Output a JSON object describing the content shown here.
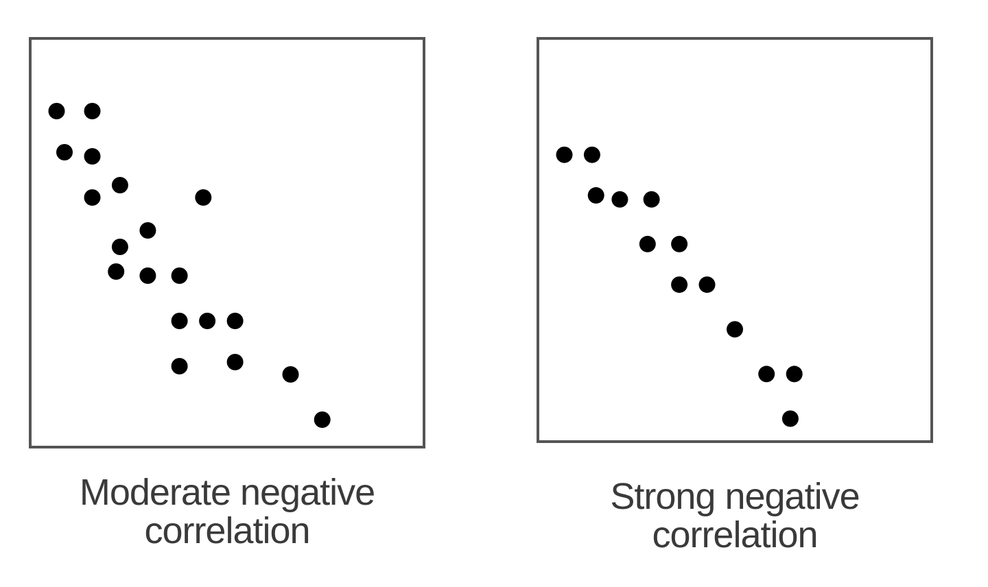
{
  "chart_data": [
    {
      "type": "scatter",
      "title": "",
      "caption_lines": [
        "Moderate negative",
        "correlation"
      ],
      "xlim": [
        0,
        100
      ],
      "ylim": [
        0,
        100
      ],
      "grid": false,
      "legend": "none",
      "point_color": "#000000",
      "points": [
        {
          "x": 7,
          "y": 82
        },
        {
          "x": 16,
          "y": 82
        },
        {
          "x": 9,
          "y": 72
        },
        {
          "x": 16,
          "y": 71
        },
        {
          "x": 16,
          "y": 61
        },
        {
          "x": 23,
          "y": 64
        },
        {
          "x": 44,
          "y": 61
        },
        {
          "x": 30,
          "y": 53
        },
        {
          "x": 23,
          "y": 49
        },
        {
          "x": 22,
          "y": 43
        },
        {
          "x": 30,
          "y": 42
        },
        {
          "x": 38,
          "y": 42
        },
        {
          "x": 38,
          "y": 31
        },
        {
          "x": 45,
          "y": 31
        },
        {
          "x": 52,
          "y": 31
        },
        {
          "x": 38,
          "y": 20
        },
        {
          "x": 52,
          "y": 21
        },
        {
          "x": 66,
          "y": 18
        },
        {
          "x": 74,
          "y": 7
        }
      ]
    },
    {
      "type": "scatter",
      "title": "",
      "caption_lines": [
        "Strong negative",
        "correlation"
      ],
      "xlim": [
        0,
        100
      ],
      "ylim": [
        0,
        100
      ],
      "grid": false,
      "legend": "none",
      "point_color": "#000000",
      "points": [
        {
          "x": 7,
          "y": 71
        },
        {
          "x": 14,
          "y": 71
        },
        {
          "x": 15,
          "y": 61
        },
        {
          "x": 21,
          "y": 60
        },
        {
          "x": 29,
          "y": 60
        },
        {
          "x": 28,
          "y": 49
        },
        {
          "x": 36,
          "y": 49
        },
        {
          "x": 36,
          "y": 39
        },
        {
          "x": 43,
          "y": 39
        },
        {
          "x": 50,
          "y": 28
        },
        {
          "x": 58,
          "y": 17
        },
        {
          "x": 65,
          "y": 17
        },
        {
          "x": 64,
          "y": 6
        }
      ]
    }
  ]
}
